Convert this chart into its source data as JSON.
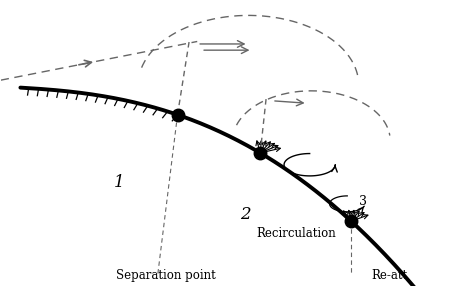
{
  "bg_color": "#ffffff",
  "curve_color": "#000000",
  "dashed_color": "#666666",
  "text_color": "#000000",
  "label_1": "1",
  "label_2": "2",
  "label_3": "3",
  "label_recirculation": "Recirculation",
  "label_separation": "Separation point",
  "label_reatt": "Re-att",
  "figsize": [
    4.74,
    2.87
  ],
  "dpi": 100
}
